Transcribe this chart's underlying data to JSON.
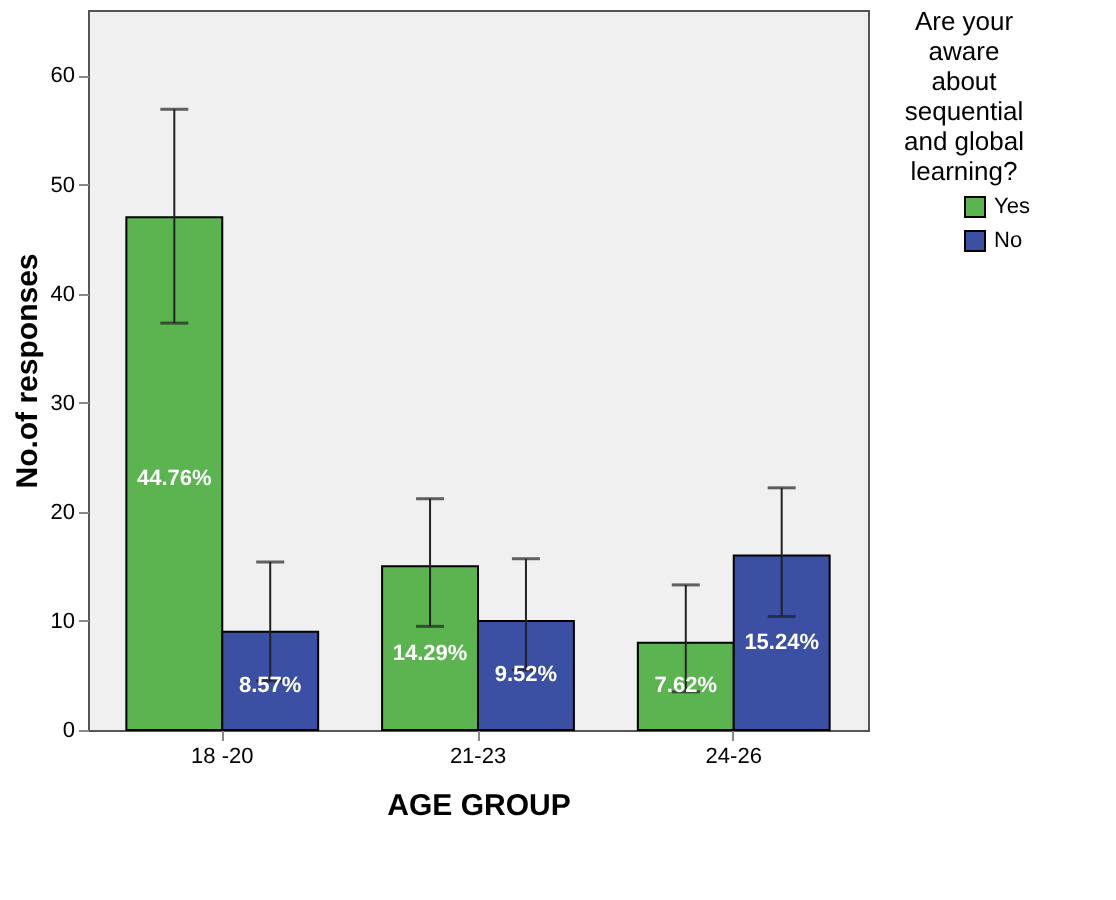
{
  "chart_data": {
    "type": "bar",
    "xlabel": "AGE GROUP",
    "ylabel": "No.of responses",
    "legend_title": "Are your aware about sequential and global learning?",
    "legend": "top right",
    "grid": false,
    "categories": [
      "18 -20",
      "21-23",
      "24-26"
    ],
    "series": [
      {
        "name": "Yes",
        "color": "#5bb450",
        "values": [
          47,
          15,
          8
        ],
        "errors": [
          [
            37.3,
            56.9
          ],
          [
            9.5,
            21.2
          ],
          [
            3.5,
            13.3
          ]
        ]
      },
      {
        "name": "No",
        "color": "#3b4fa3",
        "values": [
          9,
          10,
          16
        ],
        "errors": [
          [
            4.5,
            15.4
          ],
          [
            5.5,
            15.7
          ],
          [
            10.4,
            22.2
          ]
        ]
      }
    ],
    "annotations": [
      {
        "text": "44.76%",
        "x": "18 -20",
        "y": 23
      },
      {
        "text": "14.29%",
        "x": "21-23",
        "y": 7
      },
      {
        "text": "7.62%",
        "x": "24-26",
        "y": 4
      },
      {
        "text": "8.57%",
        "x": "18 -20",
        "y": 4
      },
      {
        "text": "9.52%",
        "x": "21-23",
        "y": 5
      },
      {
        "text": "15.24%",
        "x": "24-26",
        "y": 8
      }
    ],
    "ylim": [
      0,
      66
    ],
    "yticks": [
      0,
      10,
      20,
      30,
      40,
      50,
      60
    ]
  }
}
